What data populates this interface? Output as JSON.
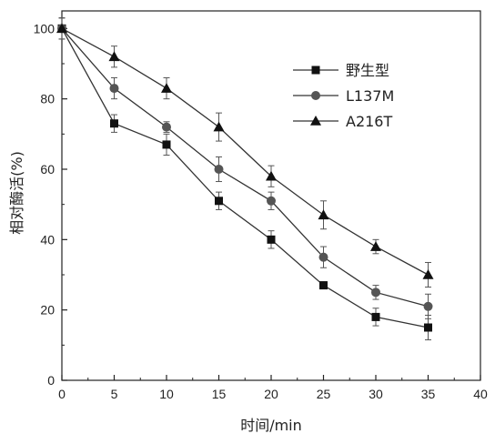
{
  "chart_data": {
    "type": "line",
    "title": "",
    "xlabel": "时间/min",
    "ylabel": "相对酶活(%)",
    "xlim": [
      0,
      40
    ],
    "ylim": [
      0,
      105
    ],
    "xticks": [
      0,
      5,
      10,
      15,
      20,
      25,
      30,
      35,
      40
    ],
    "yticks": [
      0,
      20,
      40,
      60,
      80,
      100
    ],
    "grid": false,
    "legend_position": "top-right",
    "x": [
      0,
      5,
      10,
      15,
      20,
      25,
      30,
      35
    ],
    "series": [
      {
        "name": "野生型",
        "marker": "square",
        "color": "#111111",
        "values": [
          100,
          73,
          67,
          51,
          40,
          27,
          18,
          15
        ],
        "errors": [
          3,
          2.5,
          3,
          2.5,
          2.5,
          1,
          2.5,
          3.5
        ]
      },
      {
        "name": "L137M",
        "marker": "circle",
        "color": "#555555",
        "values": [
          100,
          83,
          72,
          60,
          51,
          35,
          25,
          21
        ],
        "errors": [
          3,
          3,
          1.5,
          3.5,
          2.5,
          3,
          2,
          3.5
        ]
      },
      {
        "name": "A216T",
        "marker": "triangle",
        "color": "#111111",
        "values": [
          100,
          92,
          83,
          72,
          58,
          47,
          38,
          30
        ],
        "errors": [
          3,
          3,
          3,
          4,
          3,
          4,
          2,
          3.5
        ]
      }
    ]
  }
}
